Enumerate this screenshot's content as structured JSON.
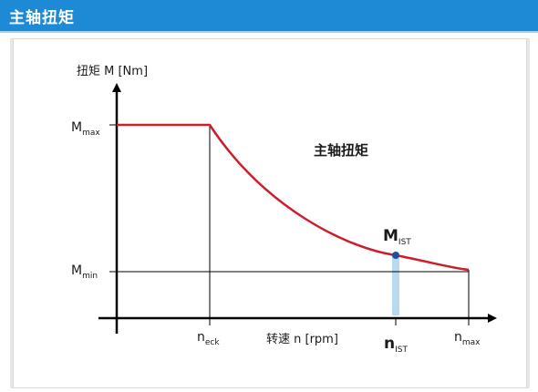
{
  "header": {
    "title": "主轴扭矩"
  },
  "diagram": {
    "y_axis_label": "扭矩 M [Nm]",
    "x_axis_label": "转速 n [rpm]",
    "curve_label": "主轴扭矩",
    "y_ticks": {
      "max": {
        "main": "M",
        "sub": "max"
      },
      "min": {
        "main": "M",
        "sub": "min"
      }
    },
    "x_ticks": {
      "eck": {
        "main": "n",
        "sub": "eck"
      },
      "ist": {
        "main": "n",
        "sub": "IST"
      },
      "max": {
        "main": "n",
        "sub": "max"
      }
    },
    "point_label": {
      "main": "M",
      "sub": "IST"
    }
  },
  "colors": {
    "header": "#1e8ad6",
    "curve": "#cc1e2b",
    "point": "#1f4fa3",
    "bar": "#b9d9ee"
  }
}
